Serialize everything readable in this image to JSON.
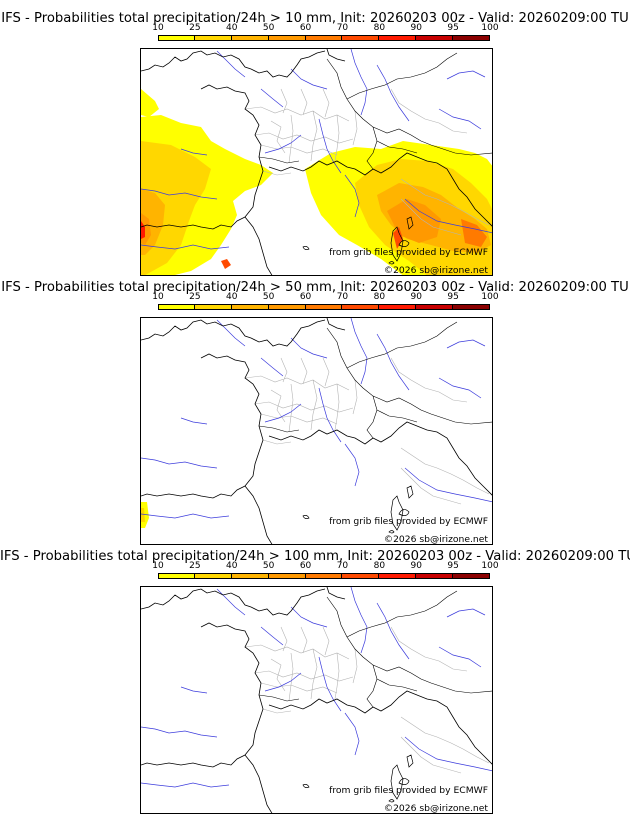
{
  "panels": [
    {
      "title": "IFS - Probabilities total precipitation/24h > 10 mm, Init: 20260203 00z - Valid: 20260209:00 TU",
      "shading": "heavy"
    },
    {
      "title": "IFS - Probabilities total precipitation/24h > 50 mm, Init: 20260203 00z - Valid: 20260209:00 TU",
      "shading": "light"
    },
    {
      "title": "IFS - Probabilities total precipitation/24h > 100 mm, Init: 20260203 00z - Valid: 20260209:00 TU",
      "shading": "none"
    }
  ],
  "colorbar": {
    "ticks": [
      "10",
      "25",
      "40",
      "50",
      "60",
      "70",
      "80",
      "90",
      "95",
      "100"
    ],
    "colors": [
      "#ffff00",
      "#ffd700",
      "#ffb400",
      "#ff9900",
      "#ff7a00",
      "#ff4a00",
      "#ff1a00",
      "#c80000",
      "#8b0000"
    ]
  },
  "credits": {
    "source": "from grib files provided by ECMWF",
    "copyright": "©2026 sb@irizone.net"
  }
}
